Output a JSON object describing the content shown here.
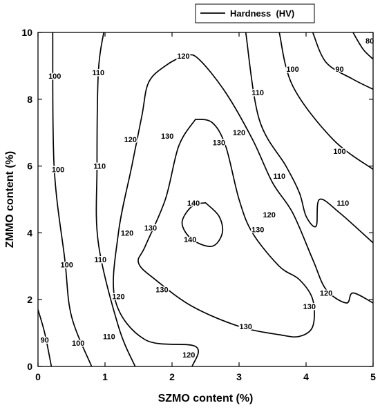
{
  "chart_data": {
    "type": "contour",
    "xlabel": "SZMO content (%)",
    "ylabel": "ZMMO content (%)",
    "xlim": [
      0,
      5
    ],
    "ylim": [
      0,
      10
    ],
    "x_ticks": [
      0,
      1,
      2,
      3,
      4,
      5
    ],
    "y_ticks": [
      0,
      2,
      4,
      6,
      8,
      10
    ],
    "legend": {
      "label": "Hardness  (HV)",
      "position": "top-right-outside"
    },
    "grid": false,
    "series": [
      {
        "name": "Hardness  (HV)",
        "contours": [
          {
            "level": 90,
            "points": [
              [
                0.0,
                1.7
              ],
              [
                0.1,
                1.0
              ],
              [
                0.2,
                0.0
              ]
            ]
          },
          {
            "level": 80,
            "points": [
              [
                4.7,
                10.0
              ],
              [
                4.85,
                9.5
              ],
              [
                5.0,
                9.2
              ]
            ]
          },
          {
            "level": 100,
            "points": [
              [
                0.22,
                10.0
              ],
              [
                0.24,
                6.0
              ],
              [
                0.4,
                3.2
              ],
              [
                0.5,
                1.5
              ],
              [
                0.8,
                0.0
              ]
            ]
          },
          {
            "level": 90,
            "points": [
              [
                4.1,
                10.0
              ],
              [
                4.3,
                9.1
              ],
              [
                4.7,
                8.6
              ],
              [
                5.0,
                8.3
              ]
            ]
          },
          {
            "level": 110,
            "points": [
              [
                0.98,
                10.0
              ],
              [
                0.9,
                8.8
              ],
              [
                0.88,
                6.0
              ],
              [
                0.9,
                3.7
              ],
              [
                1.2,
                1.2
              ],
              [
                1.45,
                0.0
              ]
            ]
          },
          {
            "level": 100,
            "points": [
              [
                3.6,
                10.0
              ],
              [
                3.8,
                8.4
              ],
              [
                4.4,
                6.8
              ],
              [
                5.0,
                5.9
              ]
            ]
          },
          {
            "level": 110,
            "points": [
              [
                3.1,
                10.0
              ],
              [
                3.3,
                7.4
              ],
              [
                3.7,
                6.0
              ],
              [
                3.9,
                5.2
              ],
              [
                4.0,
                4.5
              ],
              [
                4.15,
                4.2
              ],
              [
                4.2,
                5.0
              ],
              [
                4.5,
                4.6
              ],
              [
                5.0,
                3.7
              ]
            ]
          },
          {
            "level": 120,
            "points": [
              [
                2.3,
                0.0
              ],
              [
                2.35,
                0.6
              ],
              [
                1.6,
                0.8
              ],
              [
                1.15,
                2.0
              ],
              [
                1.2,
                4.0
              ],
              [
                1.4,
                6.0
              ],
              [
                1.55,
                7.5
              ],
              [
                1.65,
                8.5
              ],
              [
                1.9,
                9.0
              ],
              [
                2.2,
                9.3
              ],
              [
                2.4,
                9.2
              ],
              [
                2.8,
                8.2
              ],
              [
                3.2,
                6.8
              ],
              [
                3.5,
                5.5
              ],
              [
                3.8,
                4.6
              ],
              [
                4.1,
                3.2
              ],
              [
                4.3,
                2.3
              ],
              [
                4.6,
                1.9
              ],
              [
                4.7,
                2.2
              ],
              [
                5.0,
                1.9
              ]
            ]
          },
          {
            "level": 130,
            "points": [
              [
                2.35,
                7.4
              ],
              [
                2.1,
                6.6
              ],
              [
                1.9,
                5.0
              ],
              [
                1.6,
                3.6
              ],
              [
                1.5,
                3.1
              ],
              [
                1.75,
                2.6
              ],
              [
                2.3,
                1.8
              ],
              [
                3.0,
                1.2
              ],
              [
                3.6,
                0.95
              ],
              [
                3.9,
                0.9
              ],
              [
                4.1,
                1.2
              ],
              [
                4.1,
                2.0
              ],
              [
                3.9,
                2.6
              ],
              [
                3.6,
                3.0
              ],
              [
                3.2,
                4.0
              ],
              [
                3.0,
                5.0
              ],
              [
                2.8,
                6.6
              ],
              [
                2.6,
                7.3
              ],
              [
                2.35,
                7.4
              ]
            ]
          },
          {
            "level": 140,
            "points": [
              [
                2.5,
                4.9
              ],
              [
                2.3,
                4.8
              ],
              [
                2.15,
                4.3
              ],
              [
                2.3,
                3.8
              ],
              [
                2.6,
                3.6
              ],
              [
                2.75,
                4.0
              ],
              [
                2.7,
                4.5
              ],
              [
                2.5,
                4.9
              ]
            ]
          }
        ]
      }
    ],
    "annotations": [
      {
        "text": "80",
        "x": 4.95,
        "y": 9.75
      },
      {
        "text": "90",
        "x": 4.5,
        "y": 8.9
      },
      {
        "text": "90",
        "x": 0.1,
        "y": 0.8
      },
      {
        "text": "100",
        "x": 0.25,
        "y": 8.7
      },
      {
        "text": "100",
        "x": 0.3,
        "y": 5.9
      },
      {
        "text": "100",
        "x": 0.43,
        "y": 3.05
      },
      {
        "text": "100",
        "x": 0.6,
        "y": 0.7
      },
      {
        "text": "100",
        "x": 3.8,
        "y": 8.9
      },
      {
        "text": "100",
        "x": 4.5,
        "y": 6.45
      },
      {
        "text": "110",
        "x": 0.9,
        "y": 8.8
      },
      {
        "text": "110",
        "x": 0.92,
        "y": 6.0
      },
      {
        "text": "110",
        "x": 0.93,
        "y": 3.2
      },
      {
        "text": "110",
        "x": 1.06,
        "y": 0.9
      },
      {
        "text": "110",
        "x": 3.28,
        "y": 8.2
      },
      {
        "text": "110",
        "x": 3.6,
        "y": 5.7
      },
      {
        "text": "110",
        "x": 4.55,
        "y": 4.9
      },
      {
        "text": "120",
        "x": 2.17,
        "y": 9.3
      },
      {
        "text": "120",
        "x": 1.38,
        "y": 6.8
      },
      {
        "text": "120",
        "x": 3.0,
        "y": 7.0
      },
      {
        "text": "120",
        "x": 1.33,
        "y": 4.0
      },
      {
        "text": "120",
        "x": 3.45,
        "y": 4.55
      },
      {
        "text": "120",
        "x": 1.2,
        "y": 2.1
      },
      {
        "text": "120",
        "x": 4.3,
        "y": 2.2
      },
      {
        "text": "120",
        "x": 2.25,
        "y": 0.35
      },
      {
        "text": "130",
        "x": 1.93,
        "y": 6.9
      },
      {
        "text": "130",
        "x": 2.7,
        "y": 6.7
      },
      {
        "text": "130",
        "x": 1.68,
        "y": 4.15
      },
      {
        "text": "130",
        "x": 3.28,
        "y": 4.1
      },
      {
        "text": "130",
        "x": 1.85,
        "y": 2.3
      },
      {
        "text": "130",
        "x": 4.05,
        "y": 1.8
      },
      {
        "text": "130",
        "x": 3.1,
        "y": 1.2
      },
      {
        "text": "140",
        "x": 2.32,
        "y": 4.9
      },
      {
        "text": "140",
        "x": 2.27,
        "y": 3.8
      }
    ]
  }
}
